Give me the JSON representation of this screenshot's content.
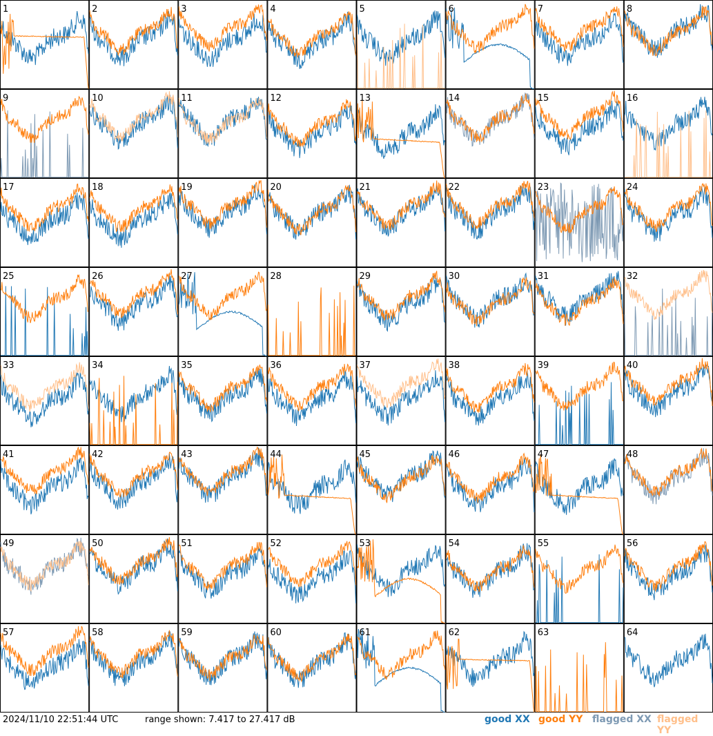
{
  "timestamp": "2024/11/10 22:51:44 UTC",
  "range_label": "range shown: 7.417 to 27.417 dB",
  "legend": {
    "good_xx": "good XX",
    "good_yy": "good YY",
    "flagged_xx": "flagged XX",
    "flagged_yy": "flagged YY"
  },
  "colors": {
    "good_xx": "#1f77b4",
    "good_yy": "#ff7f0e",
    "flagged_xx": "#7d99b3",
    "flagged_yy": "#ffbf8a",
    "grid": "#000000"
  },
  "chart_data": {
    "type": "line",
    "layout": "8x8 small multiples",
    "ylim": [
      7.417,
      27.417
    ],
    "y_unit": "dB",
    "panel_ids": [
      "1",
      "2",
      "3",
      "4",
      "5",
      "6",
      "7",
      "8",
      "9",
      "10",
      "11",
      "12",
      "13",
      "14",
      "15",
      "16",
      "17",
      "18",
      "19",
      "20",
      "21",
      "22",
      "23",
      "24",
      "25",
      "26",
      "27",
      "28",
      "29",
      "30",
      "31",
      "32",
      "33",
      "34",
      "35",
      "36",
      "37",
      "38",
      "39",
      "40",
      "41",
      "42",
      "43",
      "44",
      "45",
      "46",
      "47",
      "48",
      "49",
      "50",
      "51",
      "52",
      "53",
      "54",
      "55",
      "56",
      "57",
      "58",
      "59",
      "60",
      "61",
      "62",
      "63",
      "64"
    ],
    "panels": {
      "1": {
        "x": "good",
        "y": "good",
        "xs": "normal",
        "ys": "lowdrop"
      },
      "2": {
        "x": "good",
        "y": "good",
        "xs": "normal",
        "ys": "normal"
      },
      "3": {
        "x": "good",
        "y": "good",
        "xs": "normal",
        "ys": "normal"
      },
      "4": {
        "x": "good",
        "y": "good",
        "xs": "normal",
        "ys": "normal"
      },
      "5": {
        "x": "good",
        "y": "flagged",
        "xs": "normal",
        "ys": "spikes"
      },
      "6": {
        "x": "good",
        "y": "good",
        "xs": "dip",
        "ys": "normal"
      },
      "7": {
        "x": "good",
        "y": "good",
        "xs": "normal",
        "ys": "normal"
      },
      "8": {
        "x": "good",
        "y": "good",
        "xs": "normal",
        "ys": "normal"
      },
      "9": {
        "x": "flagged",
        "y": "good",
        "xs": "spikes",
        "ys": "normal"
      },
      "10": {
        "x": "good",
        "y": "flagged",
        "xs": "normal",
        "ys": "normal"
      },
      "11": {
        "x": "good",
        "y": "flagged",
        "xs": "normal",
        "ys": "normal"
      },
      "12": {
        "x": "good",
        "y": "good",
        "xs": "normal",
        "ys": "normal"
      },
      "13": {
        "x": "good",
        "y": "good",
        "xs": "normal",
        "ys": "drop"
      },
      "14": {
        "x": "flagged",
        "y": "good",
        "xs": "normal",
        "ys": "normal"
      },
      "15": {
        "x": "good",
        "y": "good",
        "xs": "normal",
        "ys": "normal"
      },
      "16": {
        "x": "good",
        "y": "flagged",
        "xs": "normal",
        "ys": "spikes"
      },
      "17": {
        "x": "good",
        "y": "good",
        "xs": "normal",
        "ys": "normal"
      },
      "18": {
        "x": "good",
        "y": "good",
        "xs": "normal",
        "ys": "normal"
      },
      "19": {
        "x": "good",
        "y": "good",
        "xs": "normal",
        "ys": "normal"
      },
      "20": {
        "x": "good",
        "y": "good",
        "xs": "normal",
        "ys": "normal"
      },
      "21": {
        "x": "good",
        "y": "good",
        "xs": "normal",
        "ys": "normal"
      },
      "22": {
        "x": "good",
        "y": "good",
        "xs": "normal",
        "ys": "normal"
      },
      "23": {
        "x": "flagged",
        "y": "good",
        "xs": "noisy",
        "ys": "normal"
      },
      "24": {
        "x": "good",
        "y": "good",
        "xs": "normal",
        "ys": "normal"
      },
      "25": {
        "x": "good",
        "y": "good",
        "xs": "spikes",
        "ys": "normal"
      },
      "26": {
        "x": "good",
        "y": "good",
        "xs": "normal",
        "ys": "normal"
      },
      "27": {
        "x": "good",
        "y": "good",
        "xs": "dip",
        "ys": "normal"
      },
      "28": {
        "x": "good",
        "y": "good",
        "xs": "none",
        "ys": "spikes"
      },
      "29": {
        "x": "good",
        "y": "good",
        "xs": "normal",
        "ys": "normal"
      },
      "30": {
        "x": "good",
        "y": "good",
        "xs": "normal",
        "ys": "normal"
      },
      "31": {
        "x": "good",
        "y": "good",
        "xs": "normal",
        "ys": "normal"
      },
      "32": {
        "x": "flagged",
        "y": "flagged",
        "xs": "spikes",
        "ys": "normal"
      },
      "33": {
        "x": "good",
        "y": "flagged",
        "xs": "normal",
        "ys": "normal"
      },
      "34": {
        "x": "good",
        "y": "good",
        "xs": "normal",
        "ys": "spikes"
      },
      "35": {
        "x": "good",
        "y": "good",
        "xs": "normal",
        "ys": "normal"
      },
      "36": {
        "x": "good",
        "y": "good",
        "xs": "normal",
        "ys": "normal"
      },
      "37": {
        "x": "good",
        "y": "flagged",
        "xs": "normal",
        "ys": "normal"
      },
      "38": {
        "x": "good",
        "y": "good",
        "xs": "normal",
        "ys": "normal"
      },
      "39": {
        "x": "good",
        "y": "good",
        "xs": "spikes",
        "ys": "normal"
      },
      "40": {
        "x": "good",
        "y": "good",
        "xs": "normal",
        "ys": "normal"
      },
      "41": {
        "x": "good",
        "y": "good",
        "xs": "normal",
        "ys": "normal"
      },
      "42": {
        "x": "good",
        "y": "good",
        "xs": "normal",
        "ys": "normal"
      },
      "43": {
        "x": "good",
        "y": "good",
        "xs": "normal",
        "ys": "normal"
      },
      "44": {
        "x": "good",
        "y": "good",
        "xs": "normal",
        "ys": "drop"
      },
      "45": {
        "x": "good",
        "y": "good",
        "xs": "normal",
        "ys": "normal"
      },
      "46": {
        "x": "good",
        "y": "good",
        "xs": "normal",
        "ys": "normal"
      },
      "47": {
        "x": "good",
        "y": "good",
        "xs": "normal",
        "ys": "drop"
      },
      "48": {
        "x": "flagged",
        "y": "good",
        "xs": "normal",
        "ys": "normal"
      },
      "49": {
        "x": "flagged",
        "y": "flagged",
        "xs": "normal",
        "ys": "normal"
      },
      "50": {
        "x": "good",
        "y": "good",
        "xs": "normal",
        "ys": "normal"
      },
      "51": {
        "x": "good",
        "y": "good",
        "xs": "normal",
        "ys": "normal"
      },
      "52": {
        "x": "good",
        "y": "good",
        "xs": "normal",
        "ys": "normal"
      },
      "53": {
        "x": "good",
        "y": "good",
        "xs": "normal",
        "ys": "dip"
      },
      "54": {
        "x": "good",
        "y": "good",
        "xs": "normal",
        "ys": "normal"
      },
      "55": {
        "x": "good",
        "y": "good",
        "xs": "spikes",
        "ys": "normal"
      },
      "56": {
        "x": "good",
        "y": "good",
        "xs": "normal",
        "ys": "normal"
      },
      "57": {
        "x": "good",
        "y": "good",
        "xs": "normal",
        "ys": "normal"
      },
      "58": {
        "x": "good",
        "y": "good",
        "xs": "normal",
        "ys": "normal"
      },
      "59": {
        "x": "good",
        "y": "good",
        "xs": "normal",
        "ys": "normal"
      },
      "60": {
        "x": "good",
        "y": "good",
        "xs": "normal",
        "ys": "normal"
      },
      "61": {
        "x": "good",
        "y": "good",
        "xs": "dip",
        "ys": "normal"
      },
      "62": {
        "x": "good",
        "y": "good",
        "xs": "normal",
        "ys": "lowdrop"
      },
      "63": {
        "x": "good",
        "y": "good",
        "xs": "none",
        "ys": "spikes"
      },
      "64": {
        "x": "good",
        "y": "flagged",
        "xs": "normal",
        "ys": "none"
      }
    }
  }
}
